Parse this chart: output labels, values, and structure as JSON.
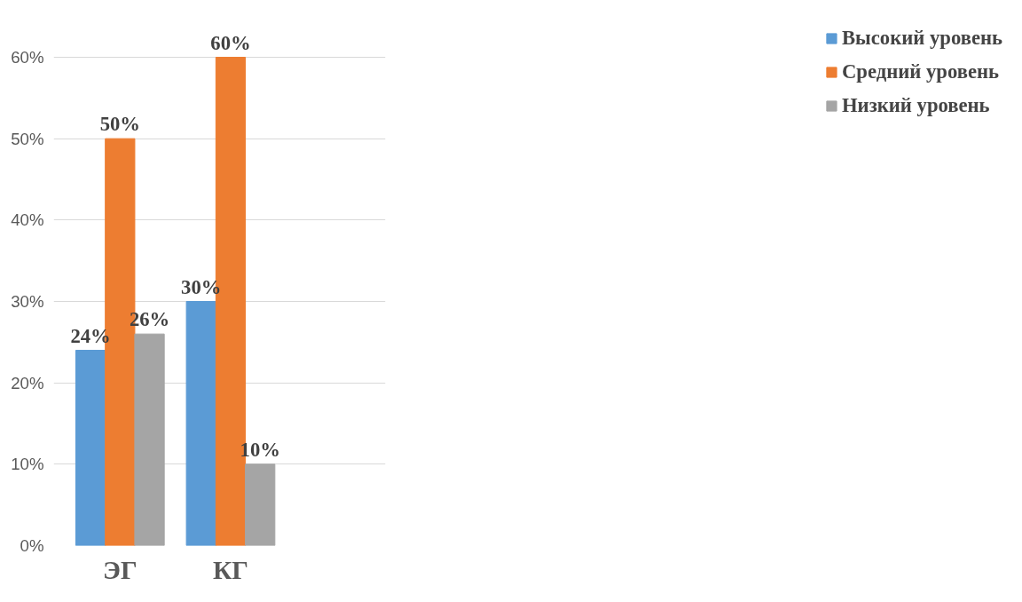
{
  "chart_data": {
    "type": "bar",
    "categories": [
      "ЭГ",
      "КГ"
    ],
    "series": [
      {
        "name": "Высокий уровень",
        "color": "#5b9bd5",
        "values": [
          24,
          30
        ],
        "value_labels": [
          "24%",
          "30%"
        ]
      },
      {
        "name": "Средний уровень",
        "color": "#ed7d31",
        "values": [
          50,
          60
        ],
        "value_labels": [
          "50%",
          "60%"
        ]
      },
      {
        "name": "Низкий уровень",
        "color": "#a5a5a5",
        "values": [
          26,
          10
        ],
        "value_labels": [
          "26%",
          "10%"
        ]
      }
    ],
    "ylim": [
      0,
      60
    ],
    "yticks": [
      {
        "value": 0,
        "label": "0%"
      },
      {
        "value": 10,
        "label": "10%"
      },
      {
        "value": 20,
        "label": "20%"
      },
      {
        "value": 30,
        "label": "30%"
      },
      {
        "value": 40,
        "label": "40%"
      },
      {
        "value": 50,
        "label": "50%"
      },
      {
        "value": 60,
        "label": "60%"
      }
    ],
    "grid": "y",
    "legend": "right"
  }
}
